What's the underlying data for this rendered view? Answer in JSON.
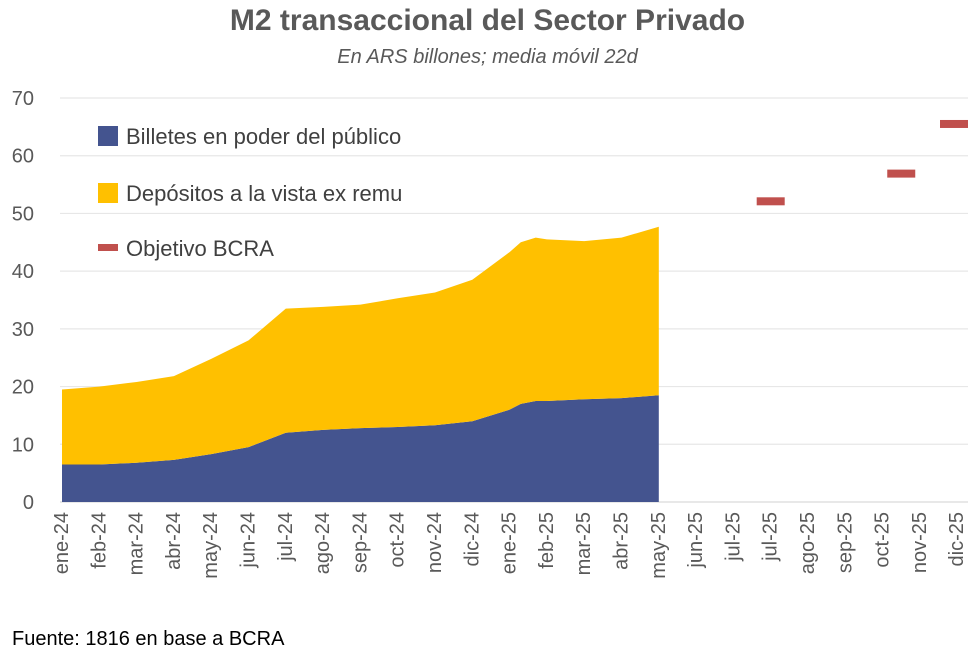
{
  "chart_data": {
    "type": "area",
    "title": "M2 transaccional del Sector Privado",
    "subtitle": "En ARS billones; media móvil 22d",
    "source": "Fuente: 1816 en base a BCRA",
    "ylim": [
      0,
      70
    ],
    "yticks": [
      0,
      10,
      20,
      30,
      40,
      50,
      60,
      70
    ],
    "grid": true,
    "legend_position": "top-left",
    "categories": [
      "ene-24",
      "feb-24",
      "mar-24",
      "abr-24",
      "may-24",
      "jun-24",
      "jul-24",
      "ago-24",
      "sep-24",
      "oct-24",
      "nov-24",
      "dic-24",
      "ene-25",
      "feb-25",
      "mar-25",
      "abr-25",
      "may-25",
      "jun-25",
      "jul-25",
      "jul-25",
      "ago-25",
      "sep-25",
      "oct-25",
      "nov-25",
      "dic-25"
    ],
    "x_range": [
      0,
      24
    ],
    "series": [
      {
        "name": "Billetes en poder del público",
        "color": "#44548f",
        "stack": true,
        "x": [
          0,
          1,
          2,
          3,
          4,
          5,
          6,
          7,
          8,
          9,
          10,
          11,
          12,
          12.3,
          12.7,
          13,
          14,
          15,
          16
        ],
        "values": [
          6.5,
          6.5,
          6.8,
          7.3,
          8.3,
          9.5,
          12.0,
          12.5,
          12.8,
          13.0,
          13.3,
          14.0,
          16.0,
          17.0,
          17.5,
          17.5,
          17.8,
          18.0,
          18.5
        ]
      },
      {
        "name": "Depósitos a la vista ex remu",
        "color": "#ffc000",
        "stack": true,
        "x": [
          0,
          1,
          2,
          3,
          4,
          5,
          6,
          7,
          8,
          9,
          10,
          11,
          12,
          12.3,
          12.7,
          13,
          14,
          15,
          16
        ],
        "values": [
          13.0,
          13.5,
          14.0,
          14.5,
          16.5,
          18.5,
          21.5,
          21.3,
          21.4,
          22.3,
          23.0,
          24.5,
          27.3,
          28.0,
          28.3,
          28.0,
          27.4,
          27.8,
          29.2
        ]
      },
      {
        "name": "Objetivo BCRA",
        "color": "#c0504d",
        "type": "marker",
        "x": [
          19,
          22.5,
          26
        ],
        "values": [
          52.1,
          56.9,
          65.5
        ]
      }
    ]
  }
}
